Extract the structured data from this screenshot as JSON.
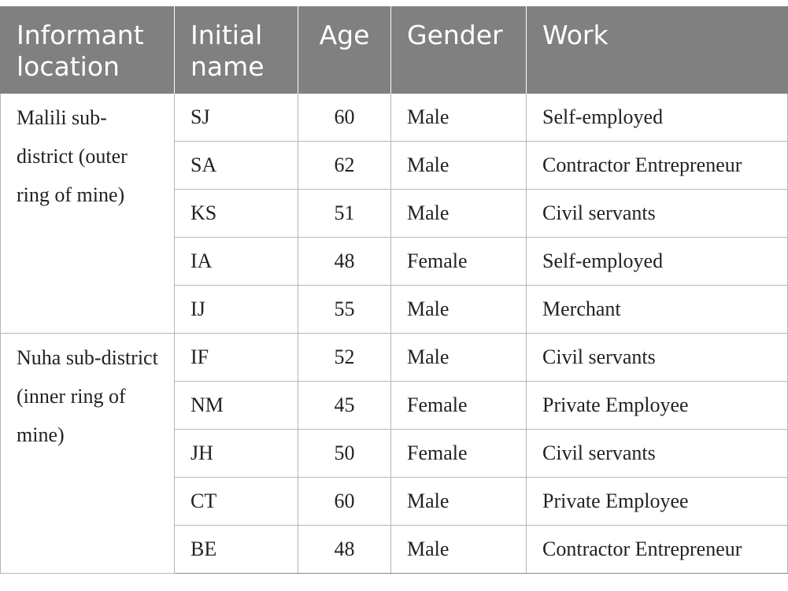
{
  "table": {
    "headers": {
      "location": "Informant location",
      "initial": "Initial name",
      "age": "Age",
      "gender": "Gender",
      "work": "Work"
    },
    "groups": [
      {
        "location": "Malili sub-district (outer ring of mine)",
        "rows": [
          {
            "initial": "SJ",
            "age": "60",
            "gender": "Male",
            "work": "Self-employed"
          },
          {
            "initial": "SA",
            "age": "62",
            "gender": "Male",
            "work": "Contractor Entrepreneur"
          },
          {
            "initial": "KS",
            "age": "51",
            "gender": "Male",
            "work": "Civil servants"
          },
          {
            "initial": "IA",
            "age": "48",
            "gender": "Female",
            "work": "Self-employed"
          },
          {
            "initial": "IJ",
            "age": "55",
            "gender": "Male",
            "work": "Merchant"
          }
        ]
      },
      {
        "location": "Nuha sub-district (inner ring of mine)",
        "rows": [
          {
            "initial": "IF",
            "age": "52",
            "gender": "Male",
            "work": "Civil servants"
          },
          {
            "initial": "NM",
            "age": "45",
            "gender": "Female",
            "work": "Private Employee"
          },
          {
            "initial": "JH",
            "age": "50",
            "gender": "Female",
            "work": "Civil servants"
          },
          {
            "initial": "CT",
            "age": "60",
            "gender": "Male",
            "work": "Private Employee"
          },
          {
            "initial": "BE",
            "age": "48",
            "gender": "Male",
            "work": "Contractor Entrepreneur"
          }
        ]
      }
    ]
  }
}
